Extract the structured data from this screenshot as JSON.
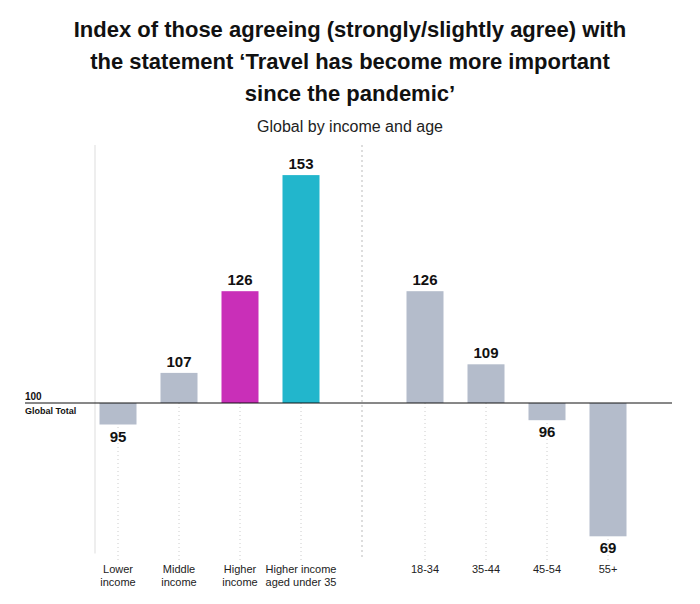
{
  "chart_data": {
    "type": "bar",
    "title": "Index of those agreeing (strongly/slightly agree) with the statement ‘Travel has become more important since the pandemic’",
    "subtitle": "Global by income and age",
    "categories": [
      "Lower income",
      "Middle income",
      "Higher income",
      "Higher income aged under 35",
      "18-34",
      "35-44",
      "45-54",
      "55+"
    ],
    "values": [
      95,
      107,
      126,
      153,
      126,
      109,
      96,
      69
    ],
    "colors": [
      "#b4bccb",
      "#b4bccb",
      "#c92fb8",
      "#22b6cc",
      "#b4bccb",
      "#b4bccb",
      "#b4bccb",
      "#b4bccb"
    ],
    "baseline": 100,
    "annotations": [
      "Global Total"
    ],
    "ylim": [
      65,
      160
    ],
    "yticks": [
      100
    ],
    "grid": false,
    "data_labels": true
  }
}
